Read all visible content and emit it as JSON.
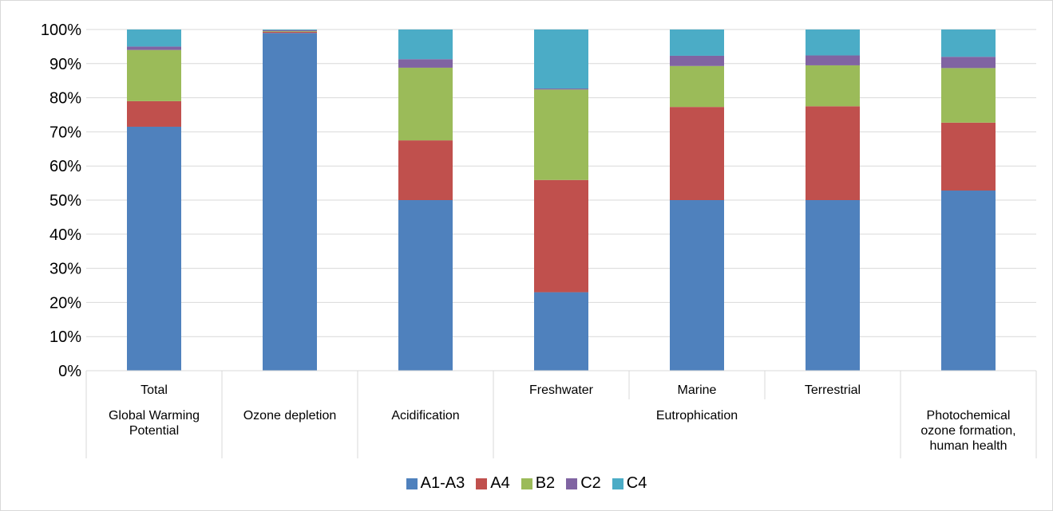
{
  "chart_data": {
    "type": "bar",
    "stacked": true,
    "percent_stacked": true,
    "categories": [
      {
        "top": "Total",
        "bottom": "Global Warming Potential"
      },
      {
        "top": "",
        "bottom": "Ozone depletion"
      },
      {
        "top": "",
        "bottom": "Acidification"
      },
      {
        "top": "Freshwater",
        "bottom": ""
      },
      {
        "top": "Marine",
        "bottom": "Eutrophication"
      },
      {
        "top": "Terrestrial",
        "bottom": ""
      },
      {
        "top": "",
        "bottom": "Photochemical ozone formation, human health"
      }
    ],
    "bottom_groups": [
      {
        "label": "Global Warming Potential",
        "from": 0,
        "to": 0
      },
      {
        "label": "Ozone depletion",
        "from": 1,
        "to": 1
      },
      {
        "label": "Acidification",
        "from": 2,
        "to": 2
      },
      {
        "label": "Eutrophication",
        "from": 3,
        "to": 5
      },
      {
        "label": "Photochemical ozone formation, human health",
        "from": 6,
        "to": 6
      }
    ],
    "series": [
      {
        "name": "A1-A3",
        "color": "#4f81bd",
        "values": [
          71.5,
          99.0,
          50.0,
          23.0,
          50.0,
          50.0,
          52.8
        ]
      },
      {
        "name": "A4",
        "color": "#c0504d",
        "values": [
          7.5,
          0.3,
          17.5,
          32.9,
          27.3,
          27.5,
          19.9
        ]
      },
      {
        "name": "B2",
        "color": "#9bbb59",
        "values": [
          15.0,
          0.2,
          21.3,
          26.5,
          12.0,
          12.0,
          16.0
        ]
      },
      {
        "name": "C2",
        "color": "#8064a2",
        "values": [
          1.0,
          0.3,
          2.5,
          0.3,
          3.0,
          2.9,
          3.3
        ]
      },
      {
        "name": "C4",
        "color": "#4bacc6",
        "values": [
          5.0,
          0.2,
          8.7,
          17.3,
          7.7,
          7.6,
          8.0
        ]
      }
    ],
    "y_ticks": [
      "0%",
      "10%",
      "20%",
      "30%",
      "40%",
      "50%",
      "60%",
      "70%",
      "80%",
      "90%",
      "100%"
    ],
    "ylim": [
      0,
      100
    ],
    "grid": true,
    "legend_position": "bottom",
    "title": "",
    "xlabel": "",
    "ylabel": ""
  }
}
